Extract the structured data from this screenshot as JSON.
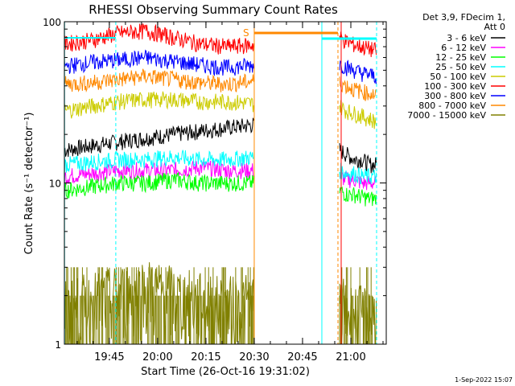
{
  "chart_data": {
    "type": "line",
    "title": "RHESSI Observing Summary Count Rates",
    "xlabel": "Start Time (26-Oct-16 19:31:02)",
    "ylabel": "Count Rate (s⁻¹ detector⁻¹)",
    "ylog": true,
    "ylim": [
      1,
      100
    ],
    "xlim_minutes_label": [
      "19:31",
      "21:11"
    ],
    "x_ticks": [
      "19:45",
      "20:00",
      "20:15",
      "20:30",
      "20:45",
      "21:00"
    ],
    "y_ticks": [
      "1",
      "10",
      "100"
    ],
    "legend_header": [
      "Det 3,9, FDecim 1,",
      "Att 0"
    ],
    "annotation": "S",
    "timestamp": "1-Sep-2022 15:07",
    "gap": {
      "start": "20:30",
      "end": "20:56"
    },
    "series": [
      {
        "name": "3 - 6 keV",
        "color": "#000000",
        "before": [
          16,
          17,
          18,
          19,
          20,
          21,
          22,
          23
        ],
        "after": [
          16,
          15,
          14,
          14,
          13,
          13
        ]
      },
      {
        "name": "6 - 12 keV",
        "color": "#ff00ff",
        "before": [
          11,
          11.5,
          12,
          12,
          12,
          12.5,
          12,
          12
        ],
        "after": [
          11,
          10.5,
          10.5,
          10,
          10,
          10
        ]
      },
      {
        "name": "12 - 25 keV",
        "color": "#00ff00",
        "before": [
          9,
          9.5,
          10,
          10,
          10.5,
          10,
          10,
          10
        ],
        "after": [
          9,
          8.5,
          8.5,
          8.2,
          8,
          8
        ]
      },
      {
        "name": "25 - 50 keV",
        "color": "#00ffff",
        "before": [
          13,
          13.5,
          14,
          14,
          14.5,
          14,
          14,
          14.5
        ],
        "after": [
          12,
          11.5,
          11.5,
          11,
          11,
          11
        ]
      },
      {
        "name": "50 - 100 keV",
        "color": "#cccc00",
        "before": [
          28,
          30,
          32,
          33,
          33,
          32,
          32,
          31
        ],
        "after": [
          30,
          28,
          27,
          26,
          25,
          24
        ]
      },
      {
        "name": "100 - 300 keV",
        "color": "#ff0000",
        "before": [
          73,
          77,
          85,
          88,
          80,
          73,
          70,
          72
        ],
        "after": [
          80,
          75,
          72,
          70,
          68,
          66
        ]
      },
      {
        "name": "300 - 800 keV",
        "color": "#0000ff",
        "before": [
          53,
          56,
          58,
          60,
          57,
          54,
          52,
          54
        ],
        "after": [
          55,
          52,
          50,
          48,
          47,
          46
        ]
      },
      {
        "name": "800 - 7000 keV",
        "color": "#ff8800",
        "before": [
          41,
          42,
          44,
          46,
          44,
          42,
          41,
          43
        ],
        "after": [
          42,
          40,
          38,
          37,
          36,
          35
        ]
      },
      {
        "name": "7000 - 15000 keV",
        "color": "#808000",
        "before": [
          1.6,
          1.8,
          2.0,
          2.2,
          2.0,
          1.8,
          1.7,
          1.8
        ],
        "after": [
          1.7,
          1.6,
          1.5,
          1.5,
          1.5,
          1.5
        ]
      }
    ]
  }
}
